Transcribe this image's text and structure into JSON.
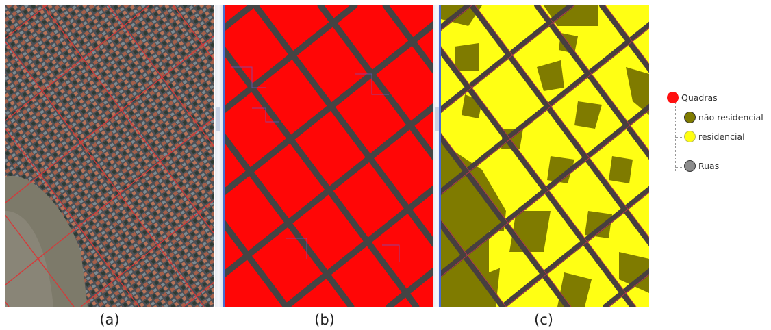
{
  "panels": {
    "a": {
      "caption": "(a)"
    },
    "b": {
      "caption": "(b)"
    },
    "c": {
      "caption": "(c)"
    }
  },
  "legend": {
    "group": {
      "label": "Quadras",
      "color": "#ff1010"
    },
    "classes": [
      {
        "label": "não residencial",
        "color": "#7f7b00"
      },
      {
        "label": "residencial",
        "color": "#ffff10"
      }
    ],
    "streets": {
      "label": "Ruas",
      "color": "#8c8c8c"
    }
  },
  "colors": {
    "street": "#444444",
    "block_outline": "#cc2a2a",
    "lot_outline": "#6060d0",
    "photo_base": "#5a5e64"
  }
}
